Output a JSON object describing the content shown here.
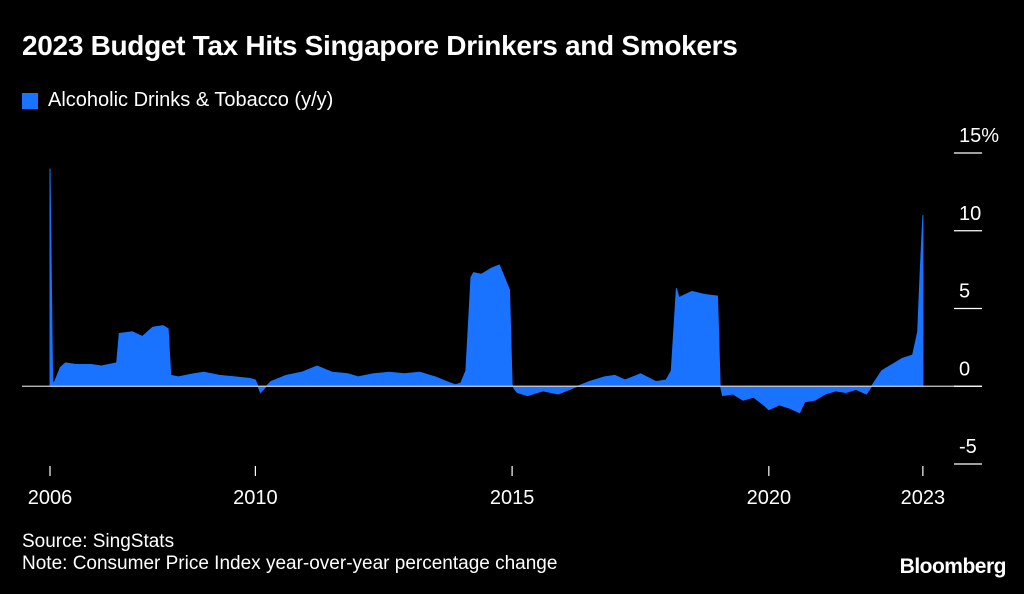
{
  "title": "2023 Budget Tax Hits Singapore Drinkers and Smokers",
  "legend": {
    "label": "Alcoholic Drinks & Tobacco (y/y)",
    "color": "#1a73ff"
  },
  "source": "Source: SingStats",
  "note": "Note: Consumer Price Index year-over-year percentage change",
  "brand": "Bloomberg",
  "colors": {
    "background": "#000000",
    "series": "#1a73ff",
    "zero_line": "#cccccc",
    "text": "#ffffff"
  },
  "chart_data": {
    "type": "area",
    "title": "2023 Budget Tax Hits Singapore Drinkers and Smokers",
    "xlabel": "",
    "ylabel": "%",
    "ylim": [
      -5,
      15
    ],
    "y_ticks": [
      {
        "value": 15,
        "label": "15%"
      },
      {
        "value": 10,
        "label": "10"
      },
      {
        "value": 5,
        "label": "5"
      },
      {
        "value": 0,
        "label": "0"
      },
      {
        "value": -5,
        "label": "-5"
      }
    ],
    "x_ticks": [
      {
        "value": 2006.0,
        "label": "2006"
      },
      {
        "value": 2010.0,
        "label": "2010"
      },
      {
        "value": 2015.0,
        "label": "2015"
      },
      {
        "value": 2020.0,
        "label": "2020"
      },
      {
        "value": 2023.0,
        "label": "2023"
      }
    ],
    "xlim": [
      2006.0,
      2023.1
    ],
    "series": [
      {
        "name": "Alcoholic Drinks & Tobacco (y/y)",
        "x": [
          2006.0,
          2006.05,
          2006.08,
          2006.2,
          2006.3,
          2006.5,
          2006.8,
          2007.0,
          2007.3,
          2007.35,
          2007.6,
          2007.8,
          2008.0,
          2008.2,
          2008.3,
          2008.35,
          2008.5,
          2008.8,
          2009.0,
          2009.3,
          2009.6,
          2009.9,
          2010.0,
          2010.1,
          2010.3,
          2010.6,
          2010.9,
          2011.2,
          2011.5,
          2011.8,
          2012.0,
          2012.3,
          2012.6,
          2012.9,
          2013.2,
          2013.5,
          2013.8,
          2013.9,
          2014.0,
          2014.1,
          2014.2,
          2014.25,
          2014.4,
          2014.6,
          2014.75,
          2014.85,
          2014.95,
          2015.0,
          2015.05,
          2015.1,
          2015.3,
          2015.6,
          2015.9,
          2016.2,
          2016.5,
          2016.8,
          2017.0,
          2017.2,
          2017.5,
          2017.8,
          2018.0,
          2018.1,
          2018.2,
          2018.25,
          2018.5,
          2018.75,
          2019.0,
          2019.05,
          2019.1,
          2019.3,
          2019.5,
          2019.7,
          2019.9,
          2020.0,
          2020.2,
          2020.4,
          2020.6,
          2020.7,
          2020.9,
          2021.1,
          2021.3,
          2021.5,
          2021.7,
          2021.9,
          2022.0,
          2022.2,
          2022.4,
          2022.6,
          2022.8,
          2022.9,
          2022.95,
          2023.0
        ],
        "values": [
          14.0,
          0.3,
          0.2,
          1.2,
          1.5,
          1.4,
          1.4,
          1.3,
          1.5,
          3.4,
          3.5,
          3.2,
          3.8,
          3.9,
          3.7,
          0.7,
          0.6,
          0.8,
          0.9,
          0.7,
          0.6,
          0.5,
          0.4,
          -0.4,
          0.3,
          0.7,
          0.9,
          1.3,
          0.9,
          0.8,
          0.6,
          0.8,
          0.9,
          0.8,
          0.9,
          0.6,
          0.2,
          0.1,
          0.2,
          1.0,
          7.0,
          7.3,
          7.2,
          7.6,
          7.8,
          7.0,
          6.2,
          0.1,
          -0.2,
          -0.4,
          -0.6,
          -0.3,
          -0.5,
          -0.1,
          0.3,
          0.6,
          0.7,
          0.4,
          0.8,
          0.3,
          0.4,
          1.0,
          6.3,
          5.7,
          6.1,
          5.9,
          5.8,
          0.1,
          -0.6,
          -0.5,
          -0.9,
          -0.7,
          -1.2,
          -1.5,
          -1.2,
          -1.4,
          -1.7,
          -1.0,
          -0.9,
          -0.5,
          -0.3,
          -0.4,
          -0.2,
          -0.5,
          0.0,
          1.0,
          1.4,
          1.8,
          2.0,
          3.5,
          7.5,
          11.0
        ]
      }
    ]
  }
}
